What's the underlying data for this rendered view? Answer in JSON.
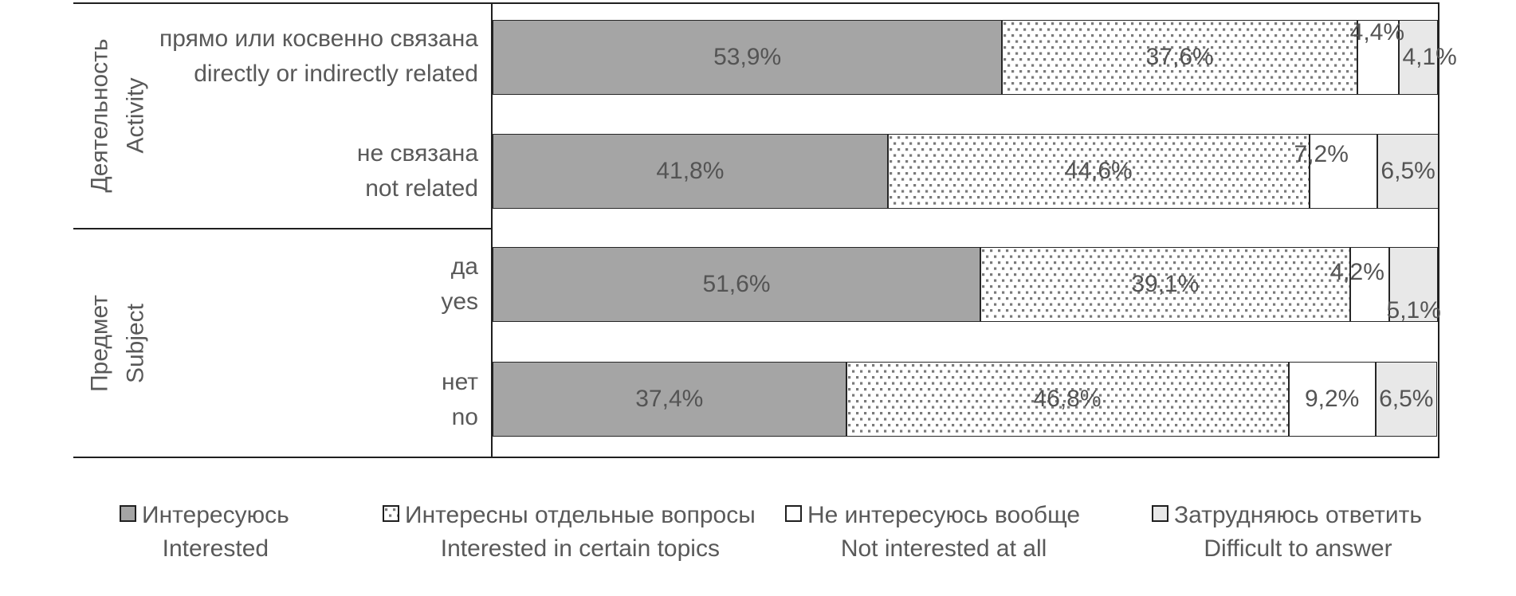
{
  "chart_data": {
    "type": "bar",
    "variant": "horizontal-stacked-100",
    "unit": "%",
    "decimal_separator": ",",
    "xlim": [
      0,
      100
    ],
    "grid": false,
    "legend_position": "bottom",
    "legend": [
      {
        "ru": "Интересуюсь",
        "en": "Interested",
        "swatch": "solid-gray",
        "color": "#a5a5a5"
      },
      {
        "ru": "Интересны отдельные вопросы",
        "en": "Interested in certain topics",
        "swatch": "dotted",
        "color": "#ffffff"
      },
      {
        "ru": "Не интересуюсь вообще",
        "en": "Not interested at all",
        "swatch": "white",
        "color": "#ffffff"
      },
      {
        "ru": "Затрудняюсь ответить",
        "en": "Difficult to answer",
        "swatch": "light-gray",
        "color": "#e8e8e8"
      }
    ],
    "groups": [
      {
        "ru": "Деятельность",
        "en": "Activity",
        "rows": [
          {
            "ru": "прямо или косвенно связана",
            "en": "directly or indirectly related",
            "values": [
              53.9,
              37.6,
              4.4,
              4.1
            ],
            "labels": [
              "53,9%",
              "37,6%",
              "4,4%",
              "4,1%"
            ]
          },
          {
            "ru": "не связана",
            "en": "not related",
            "values": [
              41.8,
              44.6,
              7.2,
              6.5
            ],
            "labels": [
              "41,8%",
              "44,6%",
              "7,2%",
              "6,5%"
            ]
          }
        ]
      },
      {
        "ru": "Предмет",
        "en": "Subject",
        "rows": [
          {
            "ru": "да",
            "en": "yes",
            "values": [
              51.6,
              39.1,
              4.2,
              5.1
            ],
            "labels": [
              "51,6%",
              "39,1%",
              "4,2%",
              "5,1%"
            ]
          },
          {
            "ru": "нет",
            "en": "no",
            "values": [
              37.4,
              46.8,
              9.2,
              6.5
            ],
            "labels": [
              "37,4%",
              "46,8%",
              "9,2%",
              "6,5%"
            ]
          }
        ]
      }
    ],
    "colors": {
      "bar_gray": "#a5a5a5",
      "light_gray": "#e8e8e8",
      "dot_color": "#7a7a7a",
      "segment_border": "#262626",
      "frame_line": "#1f1f1f",
      "text": "#595959"
    }
  }
}
